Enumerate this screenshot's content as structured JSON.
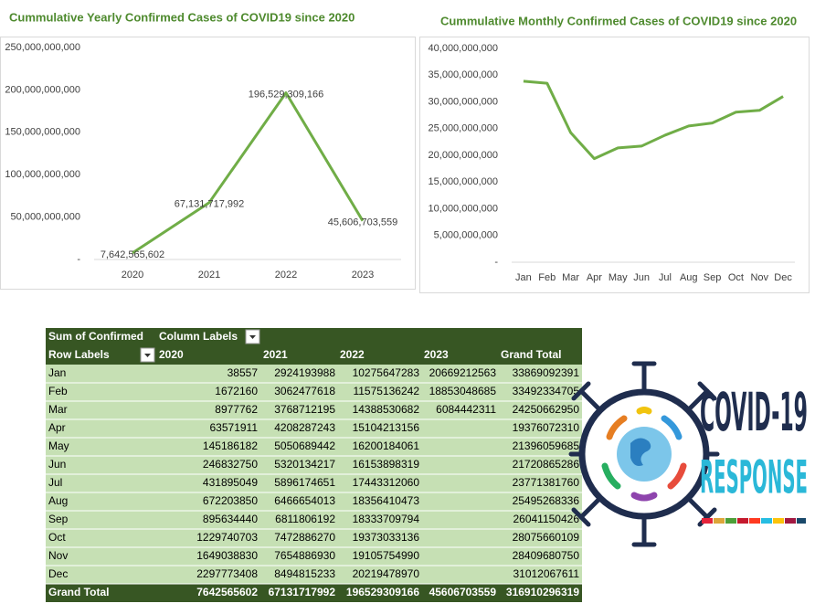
{
  "chart_data": [
    {
      "type": "line",
      "title": "Cummulative Yearly Confirmed Cases of COVID19 since 2020",
      "color": "#70ad47",
      "categories": [
        "2020",
        "2021",
        "2022",
        "2023"
      ],
      "values": [
        7642565602,
        67131717992,
        196529309166,
        45606703559
      ],
      "value_labels": [
        "7,642,565,602",
        "67,131,717,992",
        "196,529,309,166",
        "45,606,703,559"
      ],
      "ylim": [
        0,
        250000000000
      ],
      "yticks": [
        {
          "value": 0,
          "label": "-"
        },
        {
          "value": 50000000000,
          "label": "50,000,000,000"
        },
        {
          "value": 100000000000,
          "label": "100,000,000,000"
        },
        {
          "value": 150000000000,
          "label": "150,000,000,000"
        },
        {
          "value": 200000000000,
          "label": "200,000,000,000"
        },
        {
          "value": 250000000000,
          "label": "250,000,000,000"
        }
      ],
      "grid": false
    },
    {
      "type": "line",
      "title": "Cummulative Monthly Confirmed Cases of COVID19 since 2020",
      "color": "#70ad47",
      "categories": [
        "Jan",
        "Feb",
        "Mar",
        "Apr",
        "May",
        "Jun",
        "Jul",
        "Aug",
        "Sep",
        "Oct",
        "Nov",
        "Dec"
      ],
      "values": [
        33869092391,
        33492334705,
        24250662950,
        19376072310,
        21396059685,
        21720865286,
        23771381760,
        25495268336,
        26041150426,
        28075660109,
        28409680750,
        31012067611
      ],
      "ylim": [
        0,
        40000000000
      ],
      "yticks": [
        {
          "value": 0,
          "label": "-"
        },
        {
          "value": 5000000000,
          "label": "5,000,000,000"
        },
        {
          "value": 10000000000,
          "label": "10,000,000,000"
        },
        {
          "value": 15000000000,
          "label": "15,000,000,000"
        },
        {
          "value": 20000000000,
          "label": "20,000,000,000"
        },
        {
          "value": 25000000000,
          "label": "25,000,000,000"
        },
        {
          "value": 30000000000,
          "label": "30,000,000,000"
        },
        {
          "value": 35000000000,
          "label": "35,000,000,000"
        },
        {
          "value": 40000000000,
          "label": "40,000,000,000"
        }
      ],
      "grid": false
    }
  ],
  "table": {
    "header": [
      [
        "Sum of Confirmed",
        "Column Labels"
      ],
      [
        "Row Labels",
        "2020",
        "2021",
        "2022",
        "2023",
        "Grand Total"
      ]
    ],
    "rows": [
      [
        "Jan",
        38557,
        2924193988,
        10275647283,
        20669212563,
        33869092391
      ],
      [
        "Feb",
        1672160,
        3062477618,
        11575136242,
        18853048685,
        33492334705
      ],
      [
        "Mar",
        8977762,
        3768712195,
        14388530682,
        6084442311,
        24250662950
      ],
      [
        "Apr",
        63571911,
        4208287243,
        15104213156,
        null,
        19376072310
      ],
      [
        "May",
        145186182,
        5050689442,
        16200184061,
        null,
        21396059685
      ],
      [
        "Jun",
        246832750,
        5320134217,
        16153898319,
        null,
        21720865286
      ],
      [
        "Jul",
        431895049,
        5896174651,
        17443312060,
        null,
        23771381760
      ],
      [
        "Aug",
        672203850,
        6466654013,
        18356410473,
        null,
        25495268336
      ],
      [
        "Sep",
        895634440,
        6811806192,
        18333709794,
        null,
        26041150426
      ],
      [
        "Oct",
        1229740703,
        7472886270,
        19373033136,
        null,
        28075660109
      ],
      [
        "Nov",
        1649038830,
        7654886930,
        19105754990,
        null,
        28409680750
      ],
      [
        "Dec",
        2297773408,
        8494815233,
        20219478970,
        null,
        31012067611
      ]
    ],
    "total": [
      "Grand Total",
      7642565602,
      67131717992,
      196529309166,
      45606703559,
      316910296319
    ]
  },
  "logo": {
    "title": "COVID-19",
    "subtitle": "RESPONSE"
  }
}
